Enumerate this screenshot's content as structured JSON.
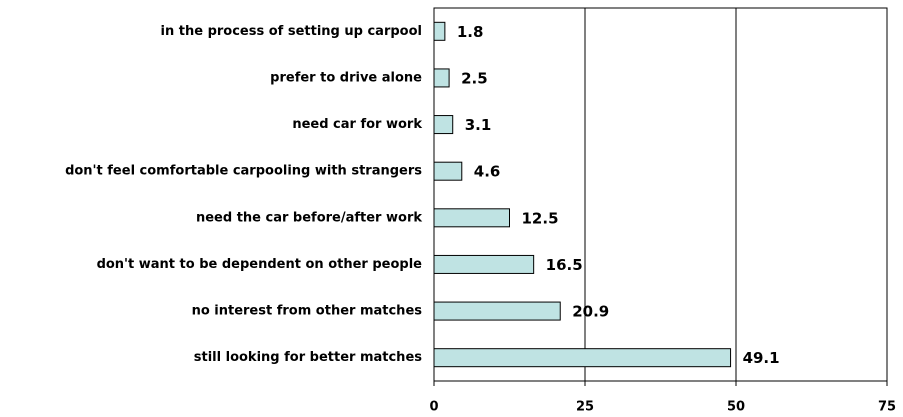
{
  "chart_data": {
    "type": "hbar",
    "categories": [
      "in the process of setting up carpool",
      "prefer to drive alone",
      "need car for work",
      "don't feel comfortable carpooling with strangers",
      "need the car before/after work",
      "don't want to be dependent on other people",
      "no interest from other matches",
      "still looking for better matches"
    ],
    "values": [
      1.8,
      2.5,
      3.1,
      4.6,
      12.5,
      16.5,
      20.9,
      49.1
    ],
    "color": "#bfe3e3",
    "xlim": [
      0,
      75
    ],
    "xticks": [
      0,
      25,
      50,
      75
    ],
    "grid": true
  }
}
